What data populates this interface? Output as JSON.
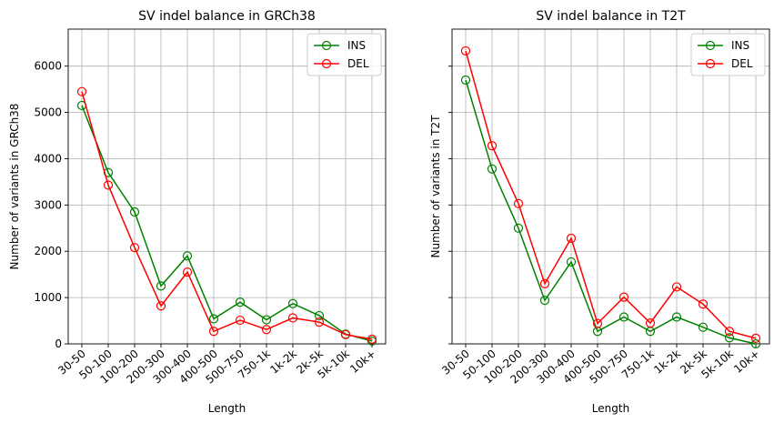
{
  "chart_data": [
    {
      "type": "line",
      "title": "SV indel balance in GRCh38",
      "xlabel": "Length",
      "ylabel": "Number of variants in GRCh38",
      "categories": [
        "30-50",
        "50-100",
        "100-200",
        "200-300",
        "300-400",
        "400-500",
        "500-750",
        "750-1k",
        "1k-2k",
        "2k-5k",
        "5k-10k",
        "10k+"
      ],
      "ylim": [
        0,
        6800
      ],
      "yticks": [
        0,
        1000,
        2000,
        3000,
        4000,
        5000,
        6000
      ],
      "grid": true,
      "legend": "top-right",
      "series": [
        {
          "name": "INS",
          "color": "#008000",
          "values": [
            5150,
            3700,
            2850,
            1250,
            1900,
            540,
            900,
            520,
            870,
            610,
            210,
            60
          ]
        },
        {
          "name": "DEL",
          "color": "#ff0000",
          "values": [
            5450,
            3430,
            2080,
            820,
            1550,
            270,
            510,
            310,
            560,
            470,
            200,
            100
          ]
        }
      ]
    },
    {
      "type": "line",
      "title": "SV indel balance in T2T",
      "xlabel": "Length",
      "ylabel": "Number of variants in T2T",
      "categories": [
        "30-50",
        "50-100",
        "100-200",
        "200-300",
        "300-400",
        "400-500",
        "500-750",
        "750-1k",
        "1k-2k",
        "2k-5k",
        "5k-10k",
        "10k+"
      ],
      "ylim": [
        0,
        6800
      ],
      "yticks": [
        0,
        1000,
        2000,
        3000,
        4000,
        5000,
        6000
      ],
      "grid": true,
      "legend": "top-right",
      "series": [
        {
          "name": "INS",
          "color": "#008000",
          "values": [
            5700,
            3780,
            2500,
            940,
            1770,
            270,
            580,
            270,
            580,
            360,
            130,
            0
          ]
        },
        {
          "name": "DEL",
          "color": "#ff0000",
          "values": [
            6330,
            4280,
            3030,
            1300,
            2280,
            440,
            1010,
            450,
            1230,
            860,
            270,
            120
          ]
        }
      ]
    }
  ]
}
